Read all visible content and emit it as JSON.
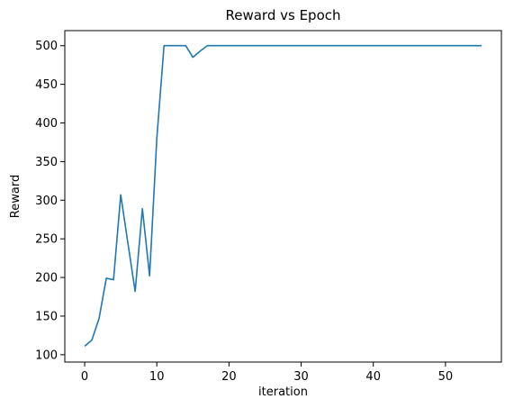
{
  "chart_data": {
    "type": "line",
    "title": "Reward vs Epoch",
    "xlabel": "iteration",
    "ylabel": "Reward",
    "xlim": [
      -2.75,
      57.75
    ],
    "ylim": [
      90.5,
      519.5
    ],
    "xticks": [
      0,
      10,
      20,
      30,
      40,
      50
    ],
    "yticks": [
      100,
      150,
      200,
      250,
      300,
      350,
      400,
      450,
      500
    ],
    "grid": false,
    "legend": "none",
    "line_color": "#1f77b4",
    "series": [
      {
        "x": [
          0,
          1,
          2,
          3,
          4,
          5,
          6,
          7,
          8,
          9,
          10,
          11,
          12,
          13,
          14,
          15,
          16,
          17,
          18,
          19,
          20,
          21,
          22,
          23,
          24,
          25,
          26,
          27,
          28,
          29,
          30,
          31,
          32,
          33,
          34,
          35,
          36,
          37,
          38,
          39,
          40,
          41,
          42,
          43,
          44,
          45,
          46,
          47,
          48,
          49,
          50,
          51,
          52,
          53,
          54,
          55
        ],
        "values": [
          111,
          119,
          147,
          199,
          197,
          307,
          244,
          182,
          289,
          202,
          380,
          500,
          500,
          500,
          500,
          485,
          493,
          500,
          500,
          500,
          500,
          500,
          500,
          500,
          500,
          500,
          500,
          500,
          500,
          500,
          500,
          500,
          500,
          500,
          500,
          500,
          500,
          500,
          500,
          500,
          500,
          500,
          500,
          500,
          500,
          500,
          500,
          500,
          500,
          500,
          500,
          500,
          500,
          500,
          500,
          500
        ]
      }
    ]
  }
}
